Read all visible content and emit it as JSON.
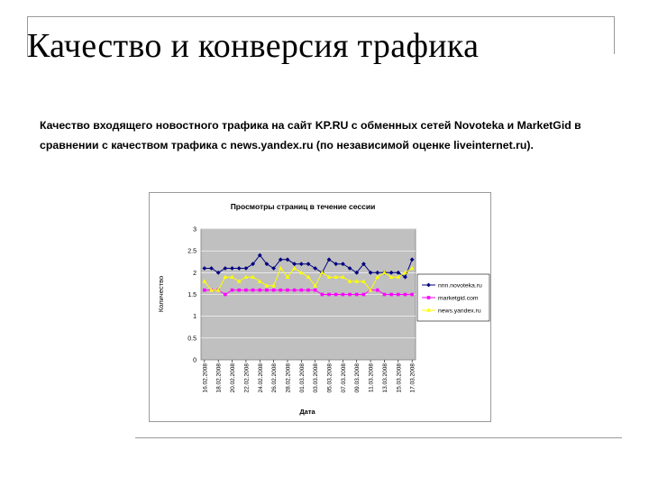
{
  "slide": {
    "title": "Качество и конверсия трафика",
    "description": "Качество входящего новостного трафика на сайт KP.RU с обменных сетей Novoteka и MarketGid в сравнении с качеством трафика с news.yandex.ru (по независимой оценке liveinternet.ru)."
  },
  "chart_data": {
    "type": "line",
    "title": "Просмотры страниц в течение сессии",
    "xlabel": "Дата",
    "ylabel": "Количество",
    "ylim": [
      0,
      3
    ],
    "yticks": [
      "0",
      "0.5",
      "1",
      "1.5",
      "2",
      "2.5",
      "3"
    ],
    "grid": true,
    "legend_position": "right",
    "plot_background": "#c0c0c0",
    "x": [
      "16.02.2008",
      "17.02.2008",
      "18.02.2008",
      "19.02.2008",
      "20.02.2008",
      "21.02.2008",
      "22.02.2008",
      "23.02.2008",
      "24.02.2008",
      "25.02.2008",
      "26.02.2008",
      "27.02.2008",
      "28.02.2008",
      "29.02.2008",
      "01.03.2008",
      "02.03.2008",
      "03.03.2008",
      "04.03.2008",
      "05.03.2008",
      "06.03.2008",
      "07.03.2008",
      "08.03.2008",
      "09.03.2008",
      "10.03.2008",
      "11.03.2008",
      "12.03.2008",
      "13.03.2008",
      "14.03.2008",
      "15.03.2008",
      "16.03.2008",
      "17.03.2008"
    ],
    "xtick_labels": [
      "16.02.2008",
      "18.02.2008",
      "20.02.2008",
      "22.02.2008",
      "24.02.2008",
      "26.02.2008",
      "28.02.2008",
      "01.03.2008",
      "03.03.2008",
      "05.03.2008",
      "07.03.2008",
      "09.03.2008",
      "11.03.2008",
      "13.03.2008",
      "15.03.2008",
      "17.03.2008"
    ],
    "series": [
      {
        "name": "nnn.novoteka.ru",
        "color": "#000080",
        "marker": "diamond",
        "values": [
          2.1,
          2.1,
          2.0,
          2.1,
          2.1,
          2.1,
          2.1,
          2.2,
          2.4,
          2.2,
          2.1,
          2.3,
          2.3,
          2.2,
          2.2,
          2.2,
          2.1,
          2.0,
          2.3,
          2.2,
          2.2,
          2.1,
          2.0,
          2.2,
          2.0,
          2.0,
          2.0,
          2.0,
          2.0,
          1.9,
          2.3
        ]
      },
      {
        "name": "marketgid.com",
        "color": "#ff00ff",
        "marker": "square",
        "values": [
          1.6,
          1.6,
          1.6,
          1.5,
          1.6,
          1.6,
          1.6,
          1.6,
          1.6,
          1.6,
          1.6,
          1.6,
          1.6,
          1.6,
          1.6,
          1.6,
          1.6,
          1.5,
          1.5,
          1.5,
          1.5,
          1.5,
          1.5,
          1.5,
          1.6,
          1.6,
          1.5,
          1.5,
          1.5,
          1.5,
          1.5
        ]
      },
      {
        "name": "news.yandex.ru",
        "color": "#ffff00",
        "marker": "triangle",
        "values": [
          1.8,
          1.6,
          1.6,
          1.9,
          1.9,
          1.8,
          1.9,
          1.9,
          1.8,
          1.7,
          1.7,
          2.1,
          1.9,
          2.1,
          2.0,
          1.9,
          1.7,
          2.0,
          1.9,
          1.9,
          1.9,
          1.8,
          1.8,
          1.8,
          1.6,
          1.9,
          2.0,
          1.9,
          1.9,
          2.0,
          2.1
        ]
      }
    ]
  }
}
